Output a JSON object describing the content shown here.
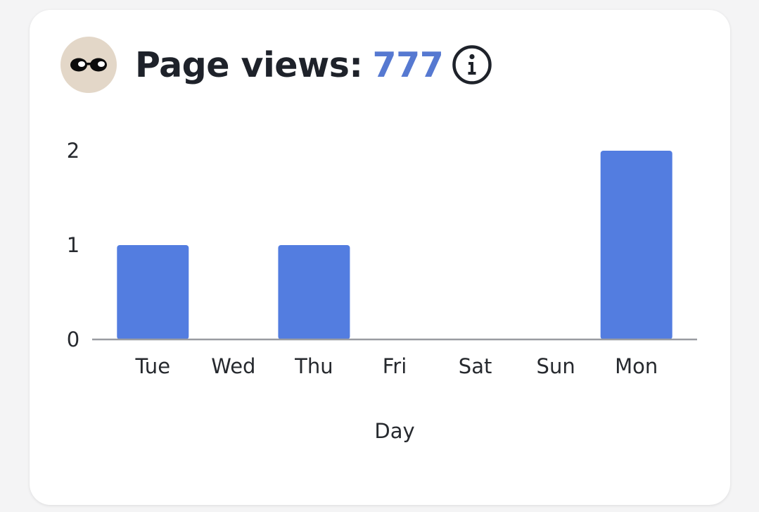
{
  "widget": {
    "title_label": "Page views:",
    "total_views": "777",
    "avatar_icon": "sunglasses-icon",
    "info_icon": "info-icon",
    "accent_color": "#5679d1",
    "avatar_bg": "#e3d7c8"
  },
  "chart_data": {
    "type": "bar",
    "categories": [
      "Tue",
      "Wed",
      "Thu",
      "Fri",
      "Sat",
      "Sun",
      "Mon"
    ],
    "values": [
      1,
      0,
      1,
      0,
      0,
      0,
      2
    ],
    "xlabel": "Day",
    "ylabel": "",
    "ylim": [
      0,
      2
    ],
    "yticks": [
      0,
      1,
      2
    ],
    "grid": false,
    "bar_color": "#537de0"
  }
}
